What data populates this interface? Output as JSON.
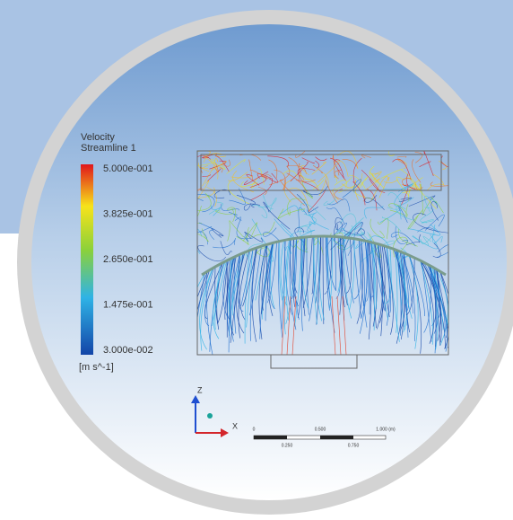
{
  "legend": {
    "title": "Velocity",
    "subtitle": "Streamline 1",
    "ticks": [
      "5.000e-001",
      "3.825e-001",
      "2.650e-001",
      "1.475e-001",
      "3.000e-002"
    ],
    "unit": "[m s^-1]"
  },
  "triad": {
    "z": "Z",
    "x": "X"
  },
  "scale_bar": {
    "top_labels": [
      "0",
      "0.500",
      "1.000 (m)"
    ],
    "bottom_labels": [
      "0.250",
      "0.750"
    ]
  }
}
